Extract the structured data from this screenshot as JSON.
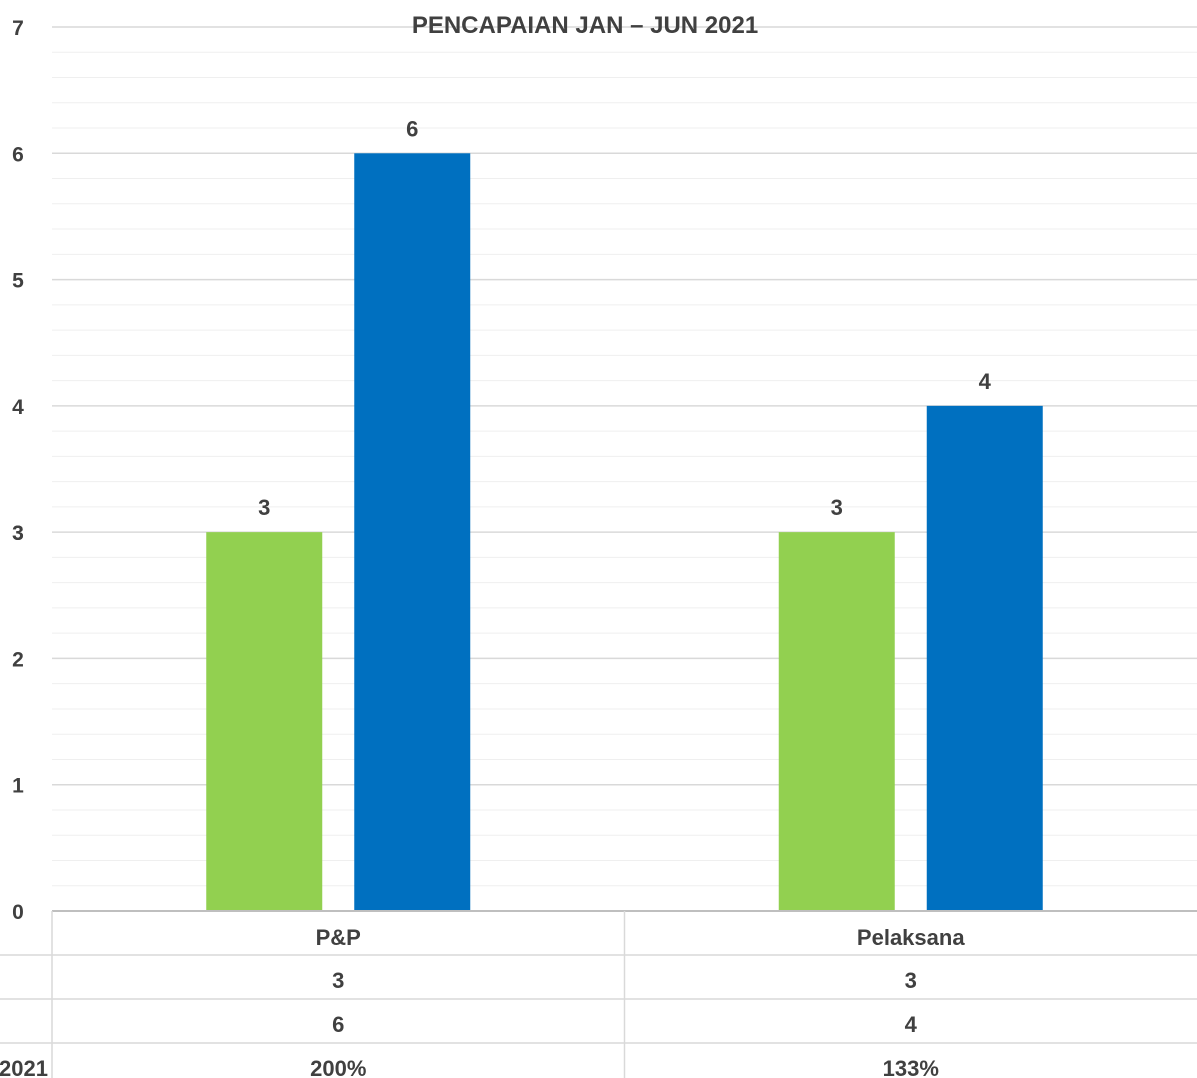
{
  "chart_data": {
    "type": "bar",
    "title": "PENCAPAIAN JAN – JUN 2021",
    "categories": [
      "P&P",
      "Pelaksana"
    ],
    "series": [
      {
        "name": "",
        "color": "#92d050",
        "values": [
          3,
          3
        ]
      },
      {
        "name": "",
        "color": "#0070c0",
        "values": [
          6,
          4
        ]
      }
    ],
    "ylim": [
      0,
      7
    ],
    "yticks": [
      "0",
      "1",
      "2",
      "3",
      "3",
      "4",
      "5",
      "6",
      "7"
    ],
    "data_labels": [
      [
        "3",
        "3"
      ],
      [
        "6",
        "4"
      ]
    ],
    "grid": true,
    "legend": "none",
    "data_table": {
      "rows": [
        {
          "label": "",
          "values": [
            "3",
            "3"
          ]
        },
        {
          "label": "",
          "values": [
            "6",
            "4"
          ]
        },
        {
          "label": "2021",
          "values": [
            "200%",
            "133%"
          ]
        }
      ]
    }
  }
}
